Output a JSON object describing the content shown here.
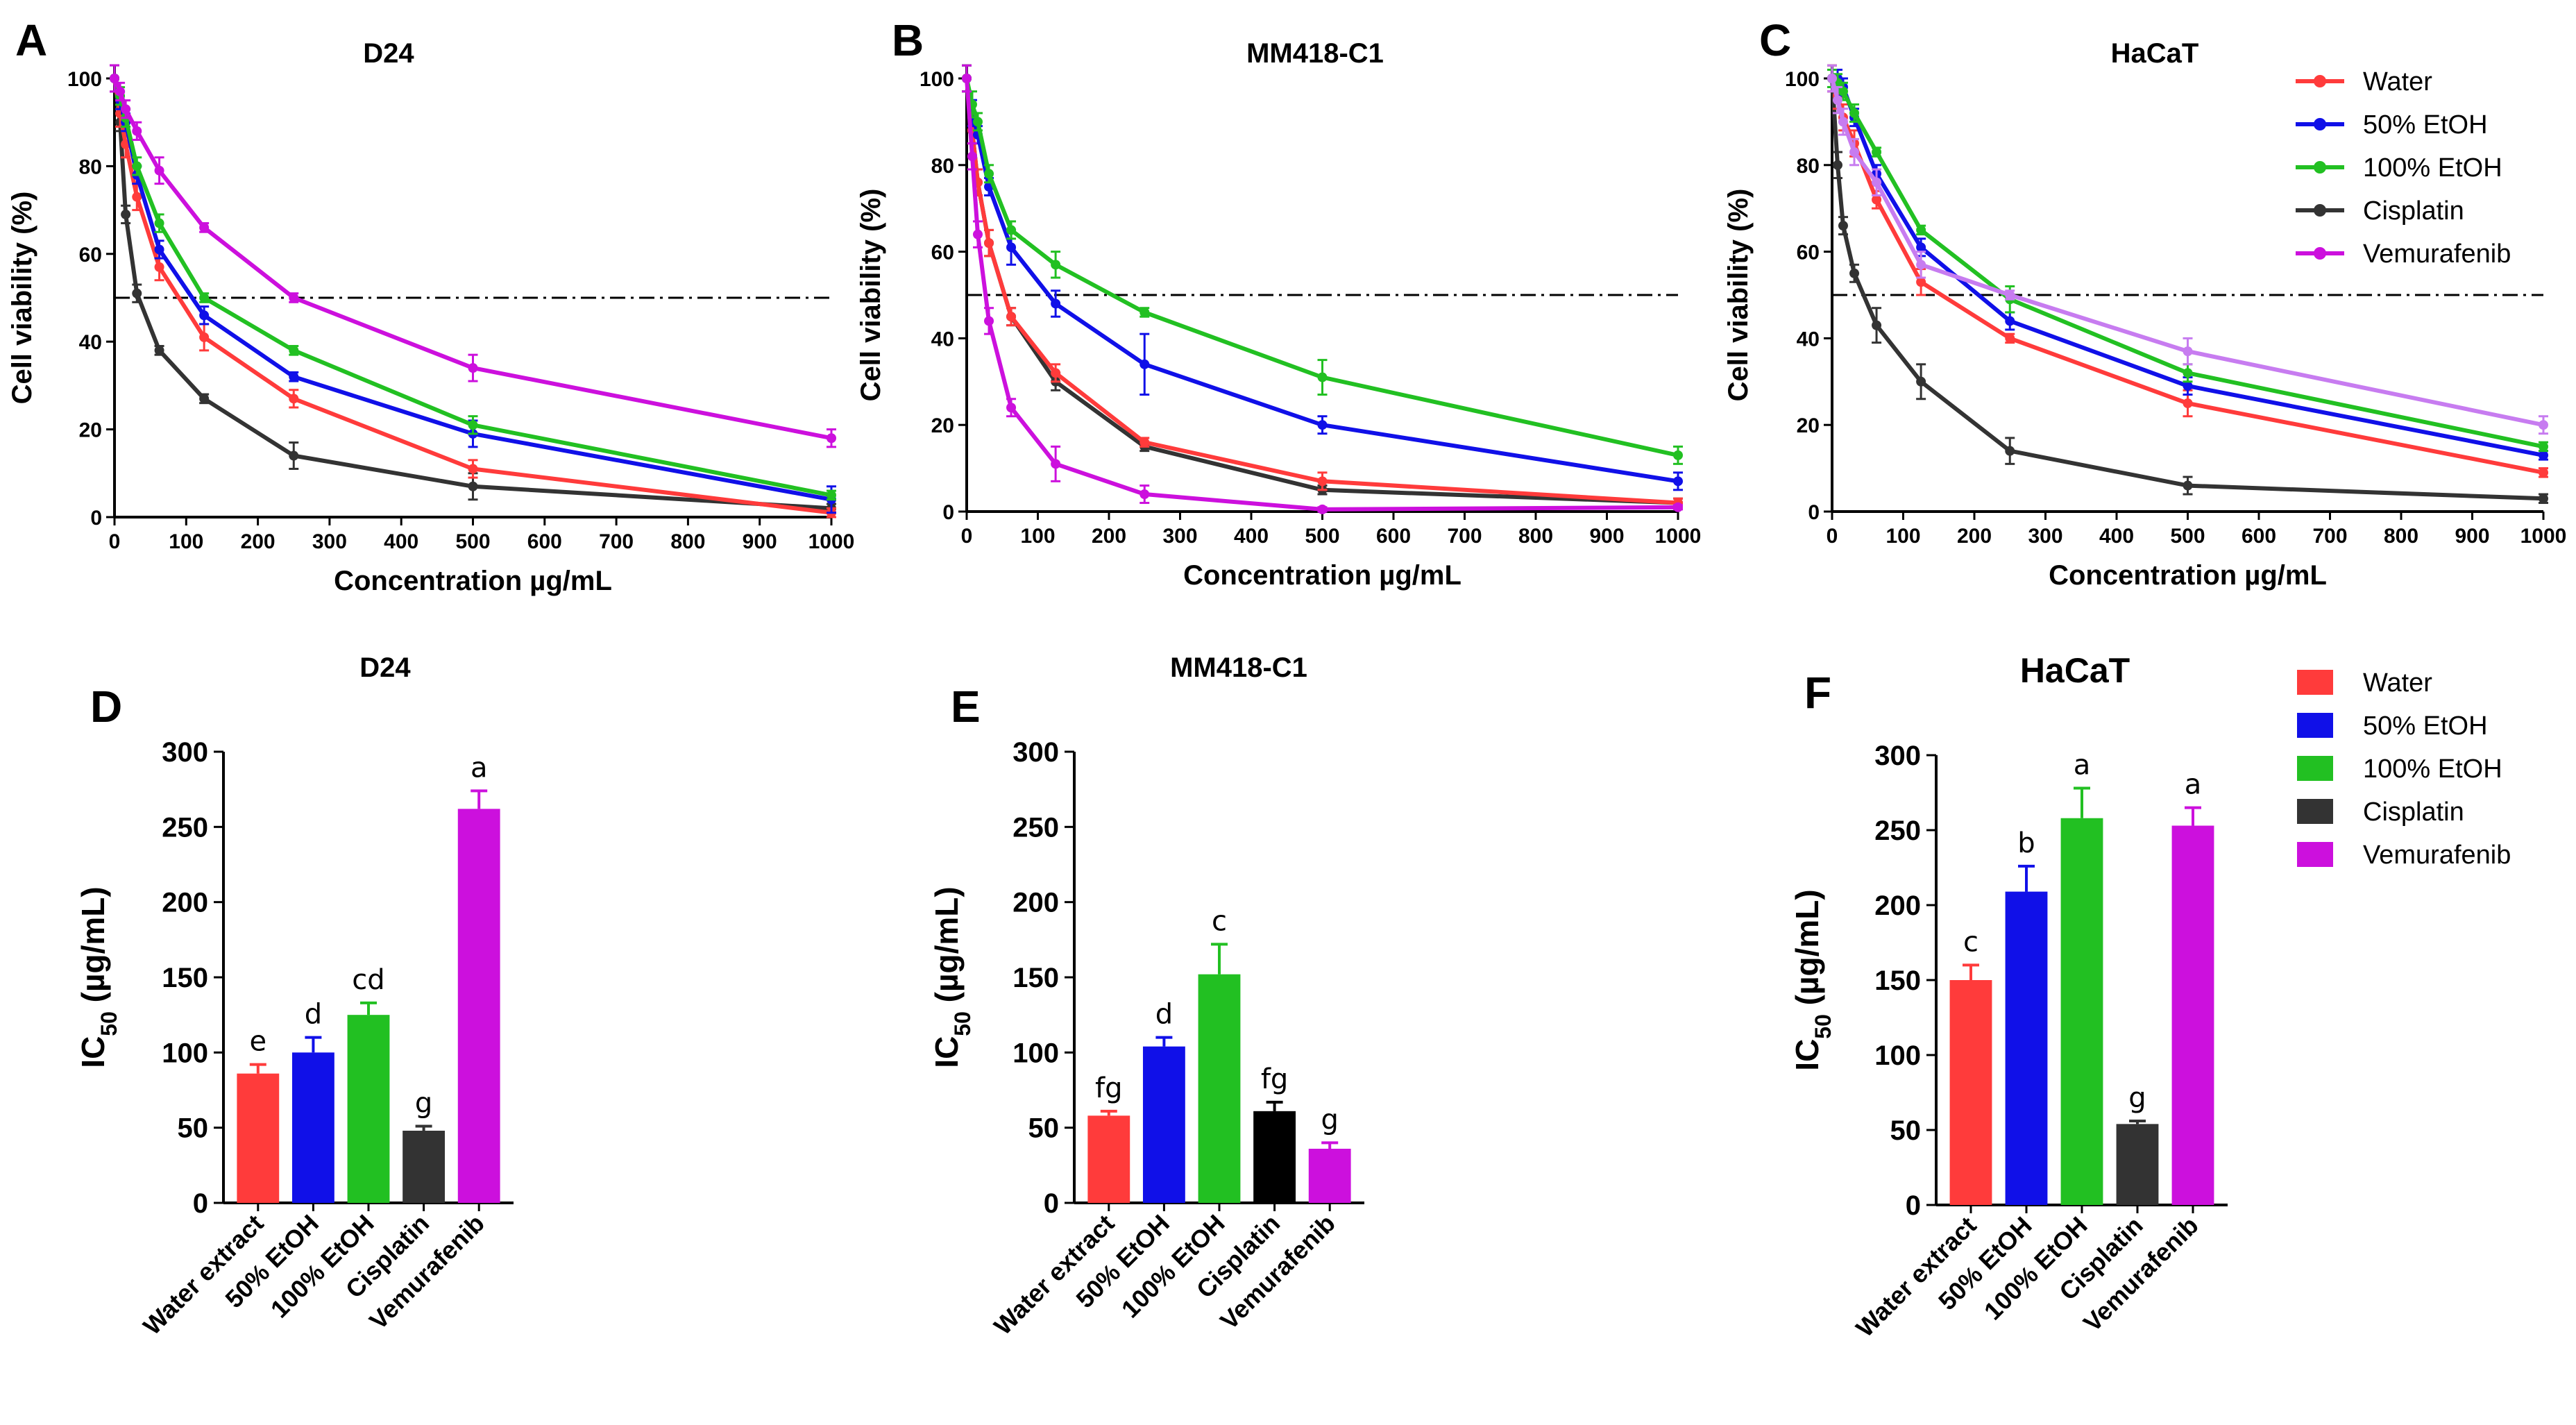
{
  "colors": {
    "Water": "#ff3b3b",
    "50% EtOH": "#1010e8",
    "100% EtOH": "#22c022",
    "Cisplatin": "#333333",
    "Vemurafenib": "#cc10dd",
    "Vemurafenib_HaCaT": "#c77cf0",
    "Cisplatin_bar_E": "#000000"
  },
  "legend_top": {
    "entries": [
      "Water",
      "50% EtOH",
      "100% EtOH",
      "Cisplatin",
      "Vemurafenib"
    ]
  },
  "legend_bottom": {
    "entries": [
      "Water",
      "50% EtOH",
      "100% EtOH",
      "Cisplatin",
      "Vemurafenib"
    ]
  },
  "chart_data": [
    {
      "panel": "A",
      "type": "line",
      "title": "D24",
      "xlabel": "Concentration µg/mL",
      "ylabel": "Cell viability (%)",
      "xlim": [
        0,
        1000
      ],
      "ylim": [
        0,
        100
      ],
      "xticks": [
        0,
        100,
        200,
        300,
        400,
        500,
        600,
        700,
        800,
        900,
        1000
      ],
      "yticks": [
        0,
        20,
        40,
        60,
        80,
        100
      ],
      "reference_line": 50,
      "x": [
        0,
        7.8,
        15.6,
        31.25,
        62.5,
        125,
        250,
        500,
        1000
      ],
      "series": [
        {
          "name": "Water",
          "values": [
            100,
            92,
            85,
            73,
            57,
            41,
            27,
            11,
            1
          ],
          "errors": [
            3,
            3,
            3,
            3,
            3,
            3,
            2,
            2,
            1
          ]
        },
        {
          "name": "50% EtOH",
          "values": [
            100,
            95,
            90,
            78,
            61,
            46,
            32,
            19,
            4
          ],
          "errors": [
            3,
            2,
            2,
            2,
            2,
            2,
            1,
            3,
            3
          ]
        },
        {
          "name": "100% EtOH",
          "values": [
            100,
            96,
            91,
            80,
            67,
            50,
            38,
            21,
            5
          ],
          "errors": [
            3,
            2,
            2,
            2,
            2,
            1,
            1,
            2,
            1
          ]
        },
        {
          "name": "Cisplatin",
          "values": [
            100,
            90,
            69,
            51,
            38,
            27,
            14,
            7,
            2
          ],
          "errors": [
            3,
            2,
            2,
            2,
            1,
            1,
            3,
            3,
            1
          ]
        },
        {
          "name": "Vemurafenib",
          "values": [
            100,
            97,
            93,
            88,
            79,
            66,
            50,
            34,
            18
          ],
          "errors": [
            3,
            2,
            2,
            2,
            3,
            1,
            1,
            3,
            2
          ]
        }
      ]
    },
    {
      "panel": "B",
      "type": "line",
      "title": "MM418-C1",
      "xlabel": "Concentration µg/mL",
      "ylabel": "Cell viability (%)",
      "xlim": [
        0,
        1000
      ],
      "ylim": [
        0,
        100
      ],
      "xticks": [
        0,
        100,
        200,
        300,
        400,
        500,
        600,
        700,
        800,
        900,
        1000
      ],
      "yticks": [
        0,
        20,
        40,
        60,
        80,
        100
      ],
      "reference_line": 50,
      "x": [
        0,
        7.8,
        15.6,
        31.25,
        62.5,
        125,
        250,
        500,
        1000
      ],
      "series": [
        {
          "name": "Water",
          "values": [
            100,
            88,
            76,
            62,
            45,
            32,
            16,
            7,
            2
          ],
          "errors": [
            3,
            3,
            3,
            3,
            2,
            2,
            1,
            2,
            1
          ]
        },
        {
          "name": "50% EtOH",
          "values": [
            100,
            92,
            87,
            75,
            61,
            48,
            34,
            20,
            7
          ],
          "errors": [
            3,
            3,
            2,
            2,
            4,
            3,
            7,
            2,
            2
          ]
        },
        {
          "name": "100% EtOH",
          "values": [
            100,
            94,
            90,
            78,
            65,
            57,
            46,
            31,
            13
          ],
          "errors": [
            3,
            3,
            2,
            2,
            2,
            3,
            1,
            4,
            2
          ]
        },
        {
          "name": "Cisplatin",
          "values": [
            100,
            88,
            76,
            62,
            45,
            30,
            15,
            5,
            2
          ],
          "errors": [
            3,
            3,
            3,
            3,
            2,
            2,
            1,
            1,
            1
          ]
        },
        {
          "name": "Vemurafenib",
          "values": [
            100,
            82,
            64,
            44,
            24,
            11,
            4,
            0.5,
            1
          ],
          "errors": [
            3,
            3,
            3,
            3,
            2,
            4,
            2,
            0.5,
            0.5
          ]
        }
      ]
    },
    {
      "panel": "C",
      "type": "line",
      "title": "HaCaT",
      "xlabel": "Concentration µg/mL",
      "ylabel": "Cell viability (%)",
      "xlim": [
        0,
        1000
      ],
      "ylim": [
        0,
        100
      ],
      "xticks": [
        0,
        100,
        200,
        300,
        400,
        500,
        600,
        700,
        800,
        900,
        1000
      ],
      "yticks": [
        0,
        20,
        40,
        60,
        80,
        100
      ],
      "reference_line": 50,
      "x": [
        0,
        7.8,
        15.6,
        31.25,
        62.5,
        125,
        250,
        500,
        1000
      ],
      "series": [
        {
          "name": "Water",
          "values": [
            100,
            96,
            91,
            85,
            72,
            53,
            40,
            25,
            9
          ],
          "errors": [
            3,
            3,
            3,
            3,
            2,
            3,
            1,
            3,
            1
          ]
        },
        {
          "name": "50% EtOH",
          "values": [
            100,
            100,
            98,
            91,
            78,
            61,
            44,
            29,
            13
          ],
          "errors": [
            2,
            2,
            2,
            2,
            2,
            2,
            2,
            2,
            1
          ]
        },
        {
          "name": "100% EtOH",
          "values": [
            100,
            99,
            97,
            92,
            83,
            65,
            49,
            32,
            15
          ],
          "errors": [
            2,
            2,
            2,
            2,
            1,
            1,
            3,
            2,
            1
          ]
        },
        {
          "name": "Cisplatin",
          "values": [
            100,
            80,
            66,
            55,
            43,
            30,
            14,
            6,
            3
          ],
          "errors": [
            3,
            3,
            2,
            2,
            4,
            4,
            3,
            2,
            1
          ]
        },
        {
          "name": "Vemurafenib",
          "values": [
            100,
            95,
            90,
            83,
            76,
            57,
            50,
            37,
            20
          ],
          "errors": [
            3,
            3,
            3,
            3,
            3,
            3,
            1,
            3,
            2
          ]
        }
      ]
    },
    {
      "panel": "D",
      "type": "bar",
      "title": "D24",
      "ylabel": "IC50 (µg/mL)",
      "ylim": [
        0,
        300
      ],
      "yticks": [
        0,
        50,
        100,
        150,
        200,
        250,
        300
      ],
      "categories": [
        "Water extract",
        "50% EtOH",
        "100% EtOH",
        "Cisplatin",
        "Vemurafenib"
      ],
      "values": [
        86,
        100,
        125,
        48,
        262
      ],
      "errors": [
        6,
        10,
        8,
        3,
        12
      ],
      "letters": [
        "e",
        "d",
        "cd",
        "g",
        "a"
      ]
    },
    {
      "panel": "E",
      "type": "bar",
      "title": "MM418-C1",
      "ylabel": "IC50 (µg/mL)",
      "ylim": [
        0,
        300
      ],
      "yticks": [
        0,
        50,
        100,
        150,
        200,
        250,
        300
      ],
      "categories": [
        "Water extract",
        "50% EtOH",
        "100% EtOH",
        "Cisplatin",
        "Vemurafenib"
      ],
      "values": [
        58,
        104,
        152,
        61,
        36
      ],
      "errors": [
        3,
        6,
        20,
        6,
        4
      ],
      "letters": [
        "fg",
        "d",
        "c",
        "fg",
        "g"
      ]
    },
    {
      "panel": "F",
      "type": "bar",
      "title": "HaCaT",
      "ylabel": "IC50 (µg/mL)",
      "ylim": [
        0,
        300
      ],
      "yticks": [
        0,
        50,
        100,
        150,
        200,
        250,
        300
      ],
      "categories": [
        "Water extract",
        "50% EtOH",
        "100% EtOH",
        "Cisplatin",
        "Vemurafenib"
      ],
      "values": [
        150,
        209,
        258,
        54,
        253
      ],
      "errors": [
        10,
        17,
        20,
        2,
        12
      ],
      "letters": [
        "c",
        "b",
        "a",
        "g",
        "a"
      ]
    }
  ]
}
